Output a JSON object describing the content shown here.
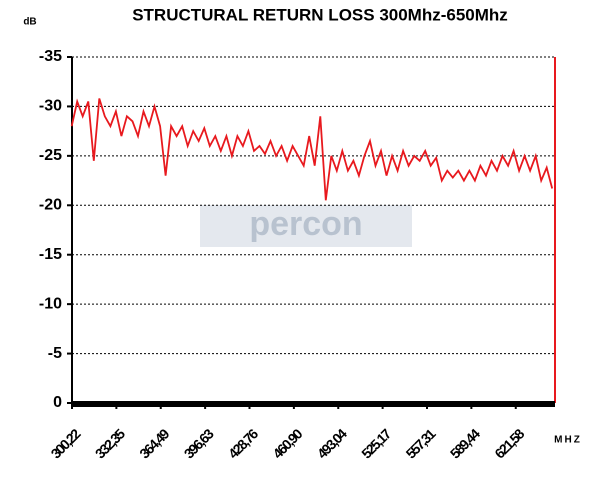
{
  "chart_data": {
    "type": "line",
    "title": "STRUCTURAL RETURN LOSS 300Mhz-650Mhz",
    "y_label": "dB",
    "x_label": "MHZ",
    "watermark": "percon",
    "x": [
      300,
      304,
      308,
      312,
      316,
      320,
      324,
      328,
      332,
      336,
      340,
      344,
      348,
      352,
      356,
      360,
      364,
      368,
      372,
      376,
      380,
      384,
      388,
      392,
      396,
      400,
      404,
      408,
      412,
      416,
      420,
      424,
      428,
      432,
      436,
      440,
      444,
      448,
      452,
      456,
      460,
      464,
      468,
      472,
      476,
      480,
      484,
      488,
      492,
      496,
      500,
      504,
      508,
      512,
      516,
      520,
      524,
      528,
      532,
      536,
      540,
      544,
      548,
      552,
      556,
      560,
      564,
      568,
      572,
      576,
      580,
      584,
      588,
      592,
      596,
      600,
      604,
      608,
      612,
      616,
      620,
      624,
      628,
      632,
      636,
      640,
      644,
      648
    ],
    "series": [
      {
        "name": "Structural return loss",
        "color": "#e8191e",
        "values": [
          -28,
          -30.5,
          -29,
          -30.5,
          -24.5,
          -30.8,
          -29,
          -28,
          -29.5,
          -27,
          -29,
          -28.5,
          -27,
          -29.5,
          -28,
          -30,
          -28,
          -23,
          -28,
          -27,
          -28,
          -26,
          -27.5,
          -26.5,
          -27.8,
          -26,
          -27,
          -25.5,
          -27,
          -25,
          -27,
          -26,
          -27.5,
          -25.5,
          -26,
          -25.2,
          -26.5,
          -25,
          -26,
          -24.5,
          -26,
          -25,
          -24,
          -27,
          -24,
          -29,
          -20.5,
          -25,
          -23.5,
          -25.5,
          -23.5,
          -24.5,
          -23,
          -25,
          -26.5,
          -24,
          -25.5,
          -23,
          -25,
          -23.5,
          -25.5,
          -24,
          -25,
          -24.5,
          -25.5,
          -24,
          -24.8,
          -22.5,
          -23.5,
          -22.8,
          -23.5,
          -22.5,
          -23.5,
          -22.5,
          -24,
          -23,
          -24.5,
          -23.5,
          -25,
          -24,
          -25.5,
          -23.5,
          -25,
          -23.5,
          -25,
          -22.5,
          -23.8,
          -21.7
        ]
      }
    ],
    "xlim": [
      300.22,
      650
    ],
    "xticks": [
      {
        "value": 300.22,
        "label": "300,22"
      },
      {
        "value": 332.35,
        "label": "332,35"
      },
      {
        "value": 364.49,
        "label": "364,49"
      },
      {
        "value": 396.63,
        "label": "396,63"
      },
      {
        "value": 428.76,
        "label": "428,76"
      },
      {
        "value": 460.9,
        "label": "460,90"
      },
      {
        "value": 493.04,
        "label": "493,04"
      },
      {
        "value": 525.17,
        "label": "525,17"
      },
      {
        "value": 557.31,
        "label": "557,31"
      },
      {
        "value": 589.44,
        "label": "589,44"
      },
      {
        "value": 621.58,
        "label": "621,58"
      }
    ],
    "ylim": [
      0,
      -35
    ],
    "yticks": [
      0,
      -5,
      -10,
      -15,
      -20,
      -25,
      -30,
      -35
    ],
    "grid": true
  }
}
